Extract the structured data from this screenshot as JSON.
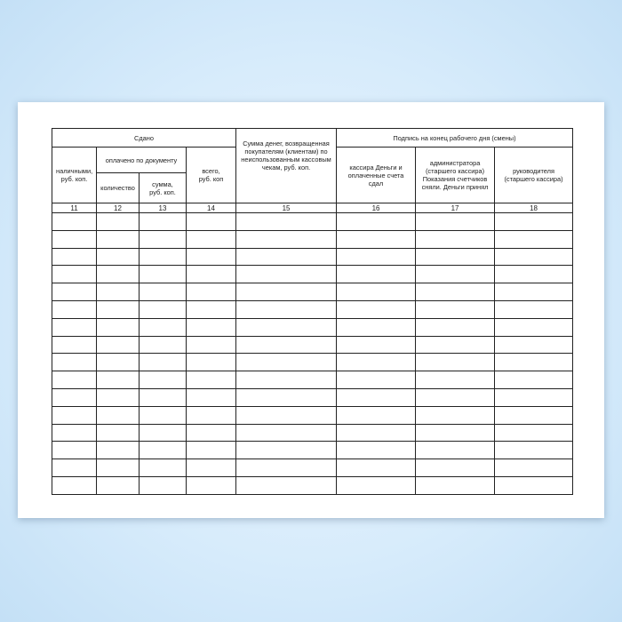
{
  "header": {
    "sdano": "Сдано",
    "cash": "наличными, руб. коп.",
    "paid_by_doc": "оплачено по документу",
    "quantity": "количество",
    "sum": "сумма, руб. коп.",
    "total": "всего, руб. коп",
    "returned": "Сумма денег, возвращенная покупателям (клиентам) по неиспользованным кассовым чекам, руб. коп.",
    "signature": "Подпись на конец рабочего дня (смены)",
    "cashier": "кассира Деньги и оплаченные счета сдал",
    "admin": "администратора (старшего кассира) Показания счетчиков сняли. Деньги принял",
    "manager": "руководителя (старшего кассира)"
  },
  "column_numbers": [
    "11",
    "12",
    "13",
    "14",
    "15",
    "16",
    "17",
    "18"
  ],
  "row_count": 16
}
